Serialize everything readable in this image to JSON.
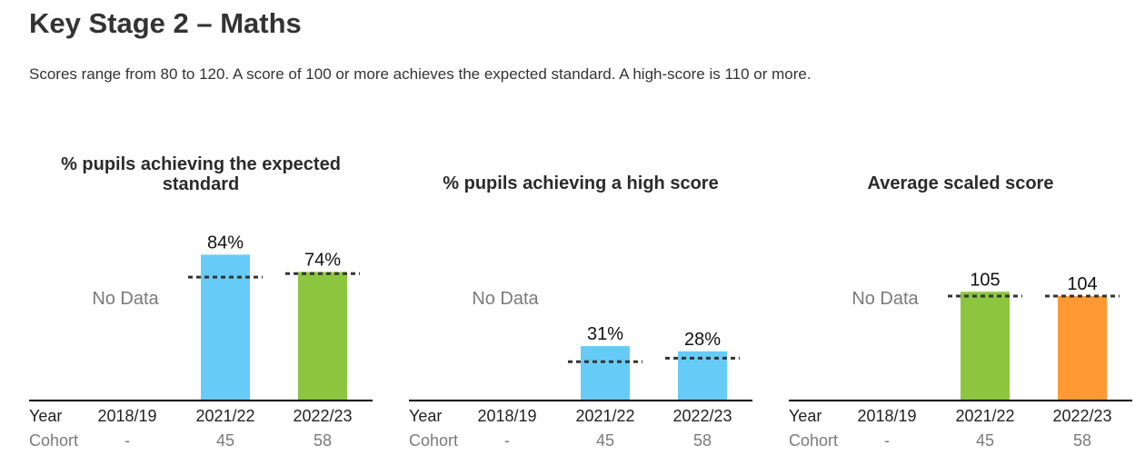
{
  "page": {
    "title": "Key Stage 2 – Maths",
    "intro": "Scores range from 80 to 120. A score of 100 or more achieves the expected standard. A high-score is 110 or more."
  },
  "colors": {
    "light_blue": "#66ccf7",
    "green": "#8cc63f",
    "orange": "#ff9933",
    "dotted_line": "#333333",
    "axis": "#000000",
    "muted_text": "#7a7a7a"
  },
  "table": {
    "year_label": "Year",
    "cohort_label": "Cohort"
  },
  "chart_data": [
    {
      "type": "bar",
      "title": "% pupils achieving the expected standard",
      "categories": [
        "2018/19",
        "2021/22",
        "2022/23"
      ],
      "values": [
        null,
        84,
        74
      ],
      "value_labels": [
        "",
        "84%",
        "74%"
      ],
      "bar_colors": [
        "",
        "#66ccf7",
        "#8cc63f"
      ],
      "reference_values": [
        null,
        71,
        73
      ],
      "no_data_label": "No Data",
      "cohort": [
        "-",
        "45",
        "58"
      ],
      "ylim": [
        0,
        100
      ]
    },
    {
      "type": "bar",
      "title": "% pupils achieving a high score",
      "categories": [
        "2018/19",
        "2021/22",
        "2022/23"
      ],
      "values": [
        null,
        31,
        28
      ],
      "value_labels": [
        "",
        "31%",
        "28%"
      ],
      "bar_colors": [
        "",
        "#66ccf7",
        "#66ccf7"
      ],
      "reference_values": [
        null,
        22,
        24
      ],
      "no_data_label": "No Data",
      "cohort": [
        "-",
        "45",
        "58"
      ],
      "ylim": [
        0,
        100
      ]
    },
    {
      "type": "bar",
      "title": "Average scaled score",
      "categories": [
        "2018/19",
        "2021/22",
        "2022/23"
      ],
      "values": [
        null,
        105,
        104
      ],
      "value_labels": [
        "",
        "105",
        "104"
      ],
      "bar_colors": [
        "",
        "#8cc63f",
        "#ff9933"
      ],
      "reference_values": [
        null,
        104,
        104
      ],
      "no_data_label": "No Data",
      "cohort": [
        "-",
        "45",
        "58"
      ],
      "ylim": [
        80,
        120
      ]
    }
  ]
}
